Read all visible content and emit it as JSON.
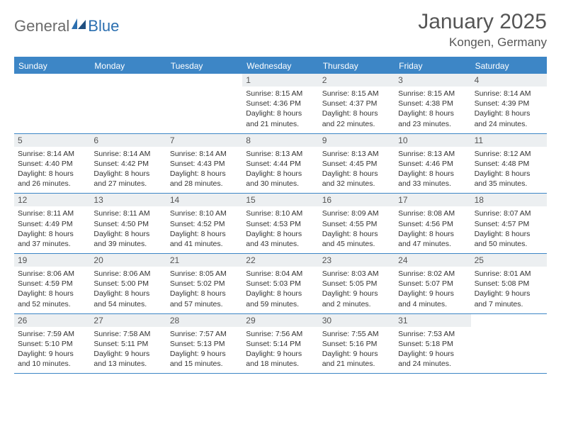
{
  "logo": {
    "part1": "General",
    "part2": "Blue"
  },
  "title": "January 2025",
  "location": "Kongen, Germany",
  "colors": {
    "header_bg": "#3d86c6",
    "header_text": "#ffffff",
    "daynum_bg": "#eceff1",
    "border": "#3d86c6",
    "logo_gray": "#6b6b6b",
    "logo_blue": "#2b6fb0"
  },
  "layout": {
    "columns": 7,
    "first_day_column": 3,
    "num_days": 31
  },
  "days_of_week": [
    "Sunday",
    "Monday",
    "Tuesday",
    "Wednesday",
    "Thursday",
    "Friday",
    "Saturday"
  ],
  "days": [
    {
      "n": 1,
      "sunrise": "8:15 AM",
      "sunset": "4:36 PM",
      "daylight": "8 hours and 21 minutes."
    },
    {
      "n": 2,
      "sunrise": "8:15 AM",
      "sunset": "4:37 PM",
      "daylight": "8 hours and 22 minutes."
    },
    {
      "n": 3,
      "sunrise": "8:15 AM",
      "sunset": "4:38 PM",
      "daylight": "8 hours and 23 minutes."
    },
    {
      "n": 4,
      "sunrise": "8:14 AM",
      "sunset": "4:39 PM",
      "daylight": "8 hours and 24 minutes."
    },
    {
      "n": 5,
      "sunrise": "8:14 AM",
      "sunset": "4:40 PM",
      "daylight": "8 hours and 26 minutes."
    },
    {
      "n": 6,
      "sunrise": "8:14 AM",
      "sunset": "4:42 PM",
      "daylight": "8 hours and 27 minutes."
    },
    {
      "n": 7,
      "sunrise": "8:14 AM",
      "sunset": "4:43 PM",
      "daylight": "8 hours and 28 minutes."
    },
    {
      "n": 8,
      "sunrise": "8:13 AM",
      "sunset": "4:44 PM",
      "daylight": "8 hours and 30 minutes."
    },
    {
      "n": 9,
      "sunrise": "8:13 AM",
      "sunset": "4:45 PM",
      "daylight": "8 hours and 32 minutes."
    },
    {
      "n": 10,
      "sunrise": "8:13 AM",
      "sunset": "4:46 PM",
      "daylight": "8 hours and 33 minutes."
    },
    {
      "n": 11,
      "sunrise": "8:12 AM",
      "sunset": "4:48 PM",
      "daylight": "8 hours and 35 minutes."
    },
    {
      "n": 12,
      "sunrise": "8:11 AM",
      "sunset": "4:49 PM",
      "daylight": "8 hours and 37 minutes."
    },
    {
      "n": 13,
      "sunrise": "8:11 AM",
      "sunset": "4:50 PM",
      "daylight": "8 hours and 39 minutes."
    },
    {
      "n": 14,
      "sunrise": "8:10 AM",
      "sunset": "4:52 PM",
      "daylight": "8 hours and 41 minutes."
    },
    {
      "n": 15,
      "sunrise": "8:10 AM",
      "sunset": "4:53 PM",
      "daylight": "8 hours and 43 minutes."
    },
    {
      "n": 16,
      "sunrise": "8:09 AM",
      "sunset": "4:55 PM",
      "daylight": "8 hours and 45 minutes."
    },
    {
      "n": 17,
      "sunrise": "8:08 AM",
      "sunset": "4:56 PM",
      "daylight": "8 hours and 47 minutes."
    },
    {
      "n": 18,
      "sunrise": "8:07 AM",
      "sunset": "4:57 PM",
      "daylight": "8 hours and 50 minutes."
    },
    {
      "n": 19,
      "sunrise": "8:06 AM",
      "sunset": "4:59 PM",
      "daylight": "8 hours and 52 minutes."
    },
    {
      "n": 20,
      "sunrise": "8:06 AM",
      "sunset": "5:00 PM",
      "daylight": "8 hours and 54 minutes."
    },
    {
      "n": 21,
      "sunrise": "8:05 AM",
      "sunset": "5:02 PM",
      "daylight": "8 hours and 57 minutes."
    },
    {
      "n": 22,
      "sunrise": "8:04 AM",
      "sunset": "5:03 PM",
      "daylight": "8 hours and 59 minutes."
    },
    {
      "n": 23,
      "sunrise": "8:03 AM",
      "sunset": "5:05 PM",
      "daylight": "9 hours and 2 minutes."
    },
    {
      "n": 24,
      "sunrise": "8:02 AM",
      "sunset": "5:07 PM",
      "daylight": "9 hours and 4 minutes."
    },
    {
      "n": 25,
      "sunrise": "8:01 AM",
      "sunset": "5:08 PM",
      "daylight": "9 hours and 7 minutes."
    },
    {
      "n": 26,
      "sunrise": "7:59 AM",
      "sunset": "5:10 PM",
      "daylight": "9 hours and 10 minutes."
    },
    {
      "n": 27,
      "sunrise": "7:58 AM",
      "sunset": "5:11 PM",
      "daylight": "9 hours and 13 minutes."
    },
    {
      "n": 28,
      "sunrise": "7:57 AM",
      "sunset": "5:13 PM",
      "daylight": "9 hours and 15 minutes."
    },
    {
      "n": 29,
      "sunrise": "7:56 AM",
      "sunset": "5:14 PM",
      "daylight": "9 hours and 18 minutes."
    },
    {
      "n": 30,
      "sunrise": "7:55 AM",
      "sunset": "5:16 PM",
      "daylight": "9 hours and 21 minutes."
    },
    {
      "n": 31,
      "sunrise": "7:53 AM",
      "sunset": "5:18 PM",
      "daylight": "9 hours and 24 minutes."
    }
  ],
  "labels": {
    "sunrise": "Sunrise:",
    "sunset": "Sunset:",
    "daylight": "Daylight:"
  }
}
